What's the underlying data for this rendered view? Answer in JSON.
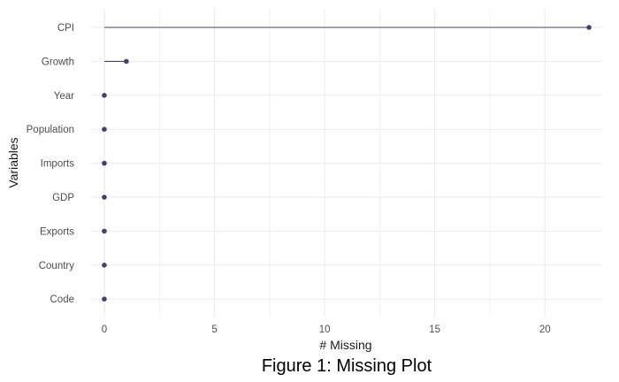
{
  "chart_data": {
    "type": "lollipop",
    "title": "",
    "caption": "Figure 1: Missing Plot",
    "xlabel": "# Missing",
    "ylabel": "Variables",
    "xlim": [
      -0.6,
      22.6
    ],
    "xticks": [
      0,
      5,
      10,
      15,
      20
    ],
    "grid": true,
    "legend": "none",
    "categories": [
      "CPI",
      "Growth",
      "Year",
      "Population",
      "Imports",
      "GDP",
      "Exports",
      "Country",
      "Code"
    ],
    "values": [
      22,
      1,
      0,
      0,
      0,
      0,
      0,
      0,
      0
    ],
    "colors": {
      "mark": "#463f6b",
      "grid": "#ebebeb"
    }
  }
}
